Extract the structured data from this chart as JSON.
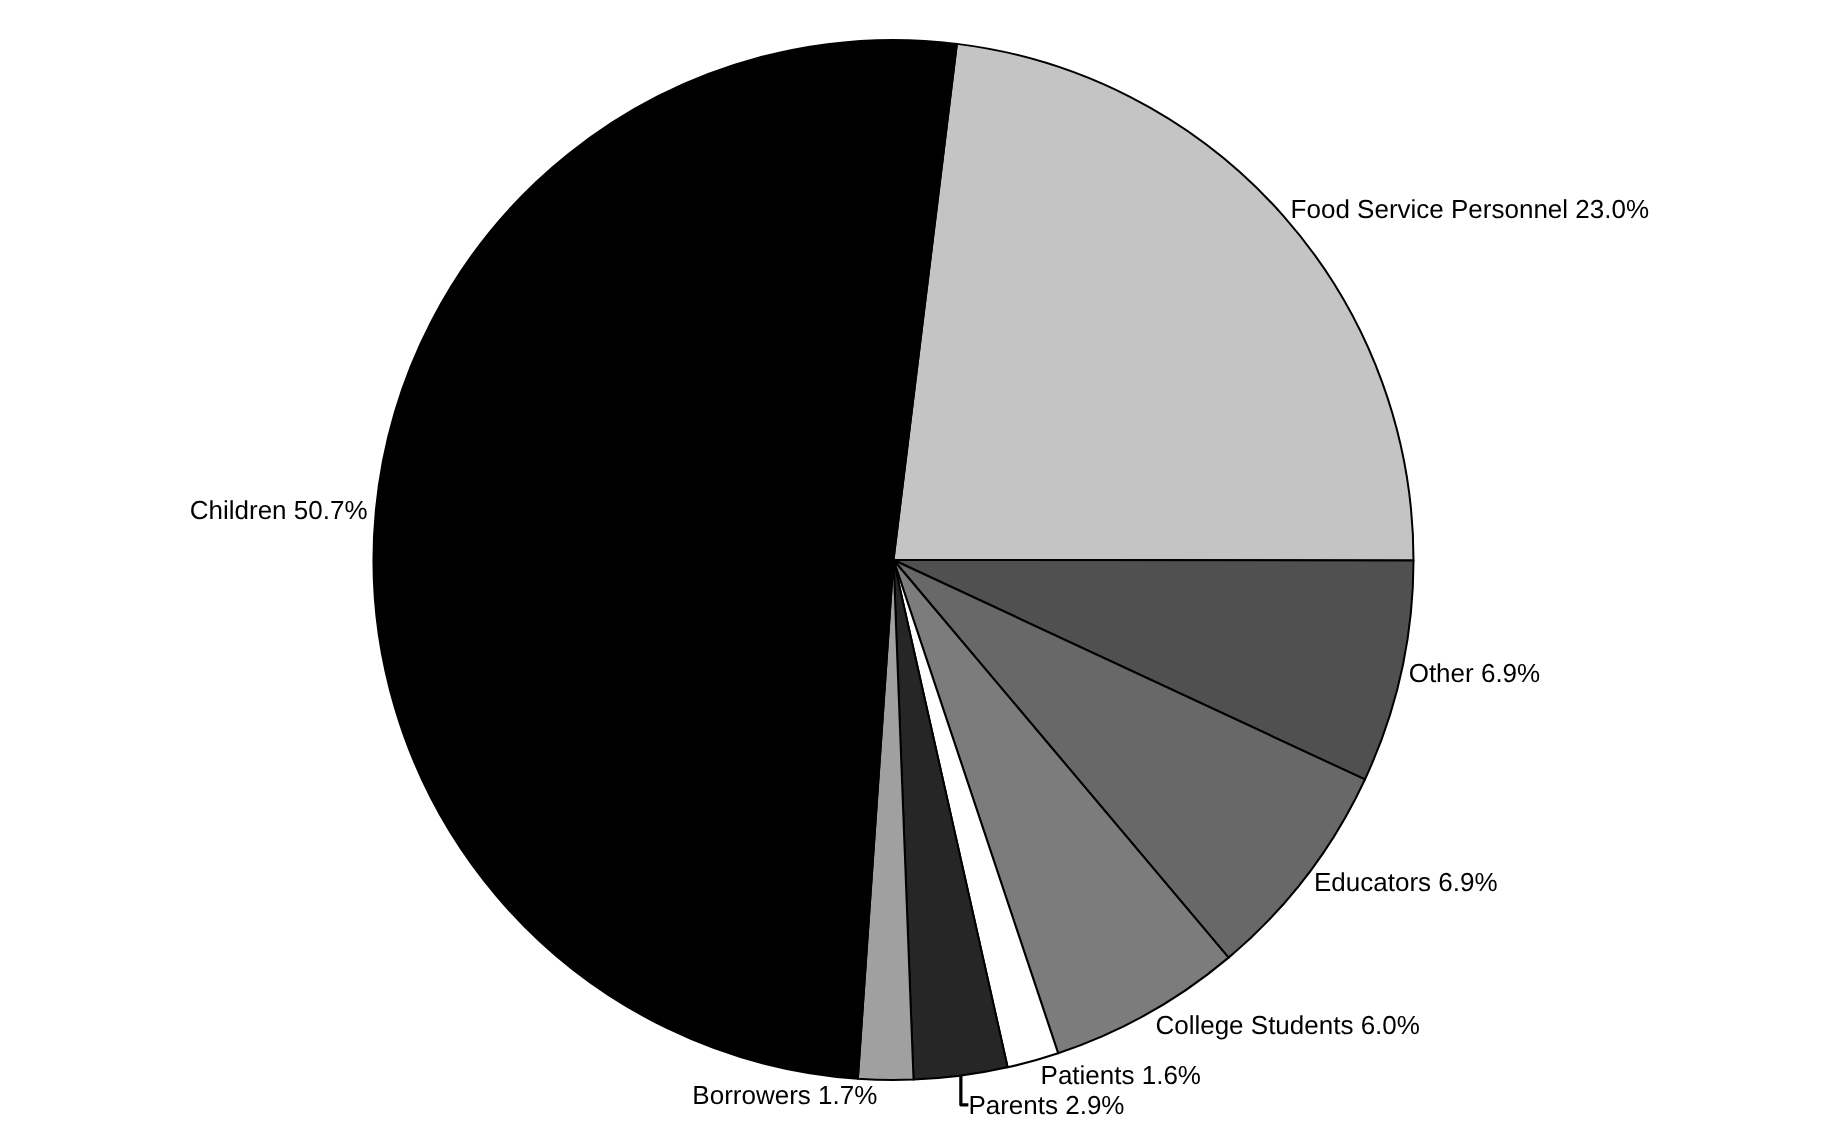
{
  "chart_data": {
    "type": "pie",
    "categories": [
      "Food Service Personnel",
      "Other",
      "Educators",
      "College Students",
      "Patients",
      "Parents",
      "Borrowers",
      "Children"
    ],
    "values": [
      23.0,
      6.9,
      6.9,
      6.0,
      1.6,
      2.9,
      1.7,
      50.7
    ],
    "value_labels": [
      "23.0%",
      "6.9%",
      "6.9%",
      "6.0%",
      "1.6%",
      "2.9%",
      "1.7%",
      "50.7%"
    ],
    "colors": [
      "#c4c4c4",
      "#505050",
      "#686868",
      "#7c7c7c",
      "#ffffff",
      "#262626",
      "#a0a0a0",
      "#000000"
    ],
    "legend": false
  }
}
